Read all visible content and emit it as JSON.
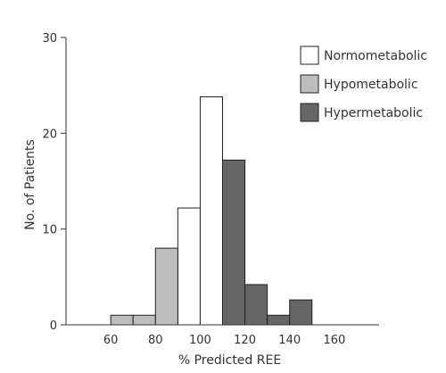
{
  "chart_data": {
    "type": "bar",
    "subtype": "histogram",
    "title": "",
    "xlabel": "% Predicted REE",
    "ylabel": "No. of Patients",
    "xlim": [
      40,
      180
    ],
    "ylim": [
      0,
      30
    ],
    "x_ticks": [
      60,
      80,
      100,
      120,
      140,
      160
    ],
    "y_ticks": [
      0,
      10,
      20,
      30
    ],
    "bin_width": 10,
    "grid": false,
    "legend_position": "top-right",
    "series": [
      {
        "name": "Normometabolic",
        "color": "#ffffff",
        "bins": [
          {
            "x_start": 90,
            "x_end": 100,
            "value": 12.2
          },
          {
            "x_start": 100,
            "x_end": 110,
            "value": 23.8
          }
        ]
      },
      {
        "name": "Hypometabolic",
        "color": "#bdbdbd",
        "bins": [
          {
            "x_start": 60,
            "x_end": 70,
            "value": 1
          },
          {
            "x_start": 70,
            "x_end": 80,
            "value": 1
          },
          {
            "x_start": 80,
            "x_end": 90,
            "value": 8
          }
        ]
      },
      {
        "name": "Hypermetabolic",
        "color": "#666666",
        "bins": [
          {
            "x_start": 110,
            "x_end": 120,
            "value": 17.2
          },
          {
            "x_start": 120,
            "x_end": 130,
            "value": 4.2
          },
          {
            "x_start": 130,
            "x_end": 140,
            "value": 1
          },
          {
            "x_start": 140,
            "x_end": 150,
            "value": 2.6
          }
        ]
      }
    ]
  }
}
